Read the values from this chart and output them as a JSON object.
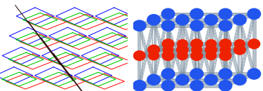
{
  "bg_color": "#ffffff",
  "left": {
    "red": "#ff0000",
    "blue": "#0000ff",
    "green": "#00cc00",
    "dark": "#220000",
    "lw": 0.7
  },
  "right": {
    "rod_color": "#7a8fa0",
    "node_blue": "#2255ee",
    "node_red": "#ee2200",
    "lw_rod": 0.45
  }
}
